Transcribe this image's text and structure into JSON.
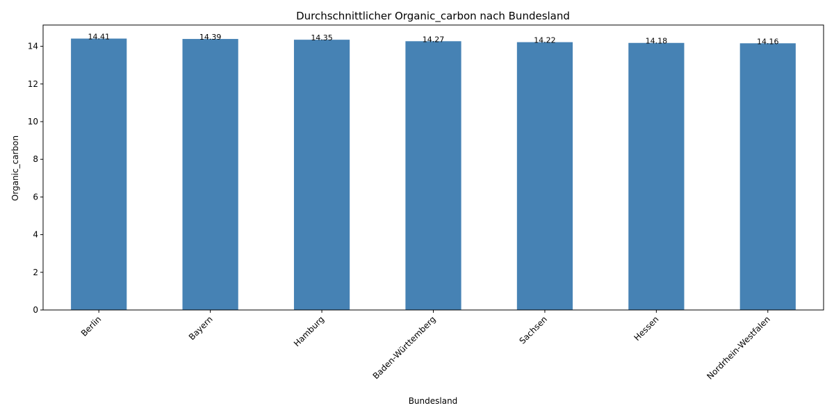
{
  "chart_data": {
    "type": "bar",
    "title": "Durchschnittlicher Organic_carbon nach Bundesland",
    "xlabel": "Bundesland",
    "ylabel": "Organic_carbon",
    "categories": [
      "Berlin",
      "Bayern",
      "Hamburg",
      "Baden-Württemberg",
      "Sachsen",
      "Hessen",
      "Nordrhein-Westfalen"
    ],
    "values": [
      14.41,
      14.39,
      14.35,
      14.27,
      14.22,
      14.18,
      14.16
    ],
    "value_labels": [
      "14.41",
      "14.39",
      "14.35",
      "14.27",
      "14.22",
      "14.18",
      "14.16"
    ],
    "ylim": [
      0,
      15.13
    ],
    "yticks": [
      0,
      2,
      4,
      6,
      8,
      10,
      12,
      14
    ],
    "ytick_labels": [
      "0",
      "2",
      "4",
      "6",
      "8",
      "10",
      "12",
      "14"
    ],
    "bar_color": "#4682b4",
    "grid": false,
    "legend": "none"
  }
}
